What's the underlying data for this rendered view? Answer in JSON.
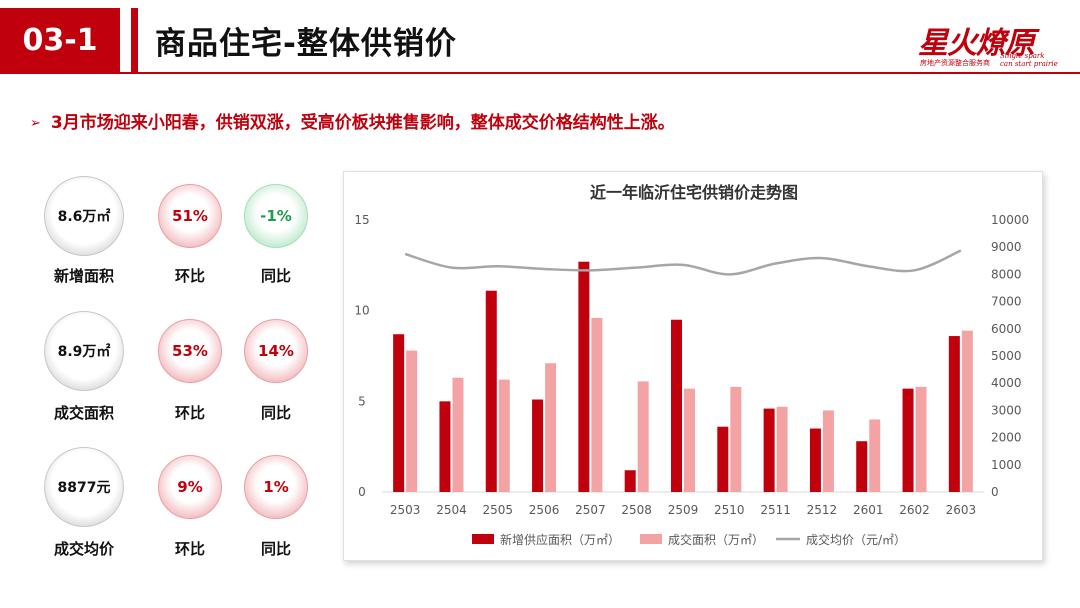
{
  "header": {
    "section_number": "03-1",
    "title": "商品住宅-整体供销价"
  },
  "logo": {
    "name": "星火燎原",
    "subtitle": "房地产资源整合服务商",
    "english_line1": "Single spark",
    "english_line2": "can start prairie",
    "color": "#c0000c"
  },
  "summary": {
    "arrow": "➢",
    "text": "3月市场迎来小阳春，供销双涨，受高价板块推售影响，整体成交价格结构性上涨。"
  },
  "kpis": [
    {
      "value": "8.6万㎡",
      "label": "新增面积",
      "mom": "51%",
      "mom_label": "环比",
      "yoy": "-1%",
      "yoy_label": "同比",
      "yoy_color": "green"
    },
    {
      "value": "8.9万㎡",
      "label": "成交面积",
      "mom": "53%",
      "mom_label": "环比",
      "yoy": "14%",
      "yoy_label": "同比",
      "yoy_color": "red"
    },
    {
      "value": "8877元",
      "label": "成交均价",
      "mom": "9%",
      "mom_label": "环比",
      "yoy": "1%",
      "yoy_label": "同比",
      "yoy_color": "red"
    }
  ],
  "colors": {
    "accent": "#c0000c",
    "supply_bar": "#c0000c",
    "deal_bar": "#f4a3a5",
    "price_line": "#a6a6a6",
    "negative": "#1e9c4b"
  },
  "chart_data": {
    "type": "bar",
    "title": "近一年临沂住宅供销价走势图",
    "categories": [
      "2503",
      "2504",
      "2505",
      "2506",
      "2507",
      "2508",
      "2509",
      "2510",
      "2511",
      "2512",
      "2601",
      "2602",
      "2603"
    ],
    "series": [
      {
        "name": "新增供应面积（万㎡）",
        "type": "bar",
        "axis": "left",
        "values": [
          8.7,
          5.0,
          11.1,
          5.1,
          12.7,
          1.2,
          9.5,
          3.6,
          4.6,
          3.5,
          2.8,
          5.7,
          8.6
        ]
      },
      {
        "name": "成交面积（万㎡）",
        "type": "bar",
        "axis": "left",
        "values": [
          7.8,
          6.3,
          6.2,
          7.1,
          9.6,
          6.1,
          5.7,
          5.8,
          4.7,
          4.5,
          4.0,
          5.8,
          8.9
        ]
      },
      {
        "name": "成交均价（元/㎡）",
        "type": "line",
        "axis": "right",
        "values": [
          8750,
          8250,
          8300,
          8200,
          8150,
          8250,
          8350,
          8000,
          8400,
          8600,
          8300,
          8150,
          8877
        ]
      }
    ],
    "y_left": {
      "min": 0,
      "max": 15,
      "ticks": [
        "0",
        "5",
        "10",
        "15"
      ]
    },
    "y_right": {
      "min": 0,
      "max": 10000,
      "ticks": [
        "0",
        "1000",
        "2000",
        "3000",
        "4000",
        "5000",
        "6000",
        "7000",
        "8000",
        "9000",
        "10000"
      ]
    },
    "grid": false,
    "legend_position": "bottom"
  }
}
